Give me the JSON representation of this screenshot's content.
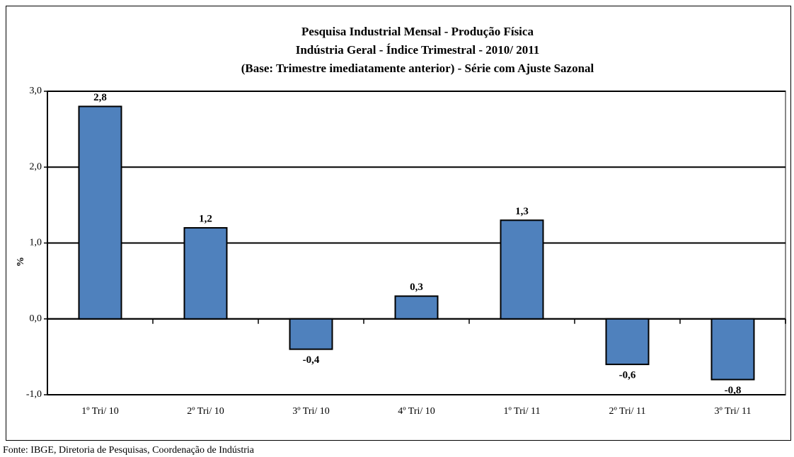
{
  "chart_data": {
    "type": "bar",
    "title": [
      "Pesquisa Industrial Mensal - Produção Física",
      "Indústria Geral - Índice Trimestral - 2010/ 2011",
      "(Base: Trimestre imediatamente anterior) - Série com Ajuste Sazonal"
    ],
    "y_label": "%",
    "categories": [
      "1º Tri/ 10",
      "2º Tri/ 10",
      "3º Tri/ 10",
      "4º Tri/ 10",
      "1º Tri/ 11",
      "2º Tri/ 11",
      "3º Tri/ 11"
    ],
    "values": [
      2.8,
      1.2,
      -0.4,
      0.3,
      1.3,
      -0.6,
      -0.8
    ],
    "value_labels": [
      "2,8",
      "1,2",
      "-0,4",
      "0,3",
      "1,3",
      "-0,6",
      "-0,8"
    ],
    "color": "#4f81bd",
    "ylim": [
      -1,
      3
    ],
    "yticks": [
      {
        "value": -1,
        "label": "-1,0"
      },
      {
        "value": 0,
        "label": "0,0"
      },
      {
        "value": 1,
        "label": "1,0"
      },
      {
        "value": 2,
        "label": "2,0"
      },
      {
        "value": 3,
        "label": "3,0"
      }
    ],
    "grid": true,
    "source": "Fonte: IBGE, Diretoria de Pesquisas, Coordenação de Indústria"
  }
}
